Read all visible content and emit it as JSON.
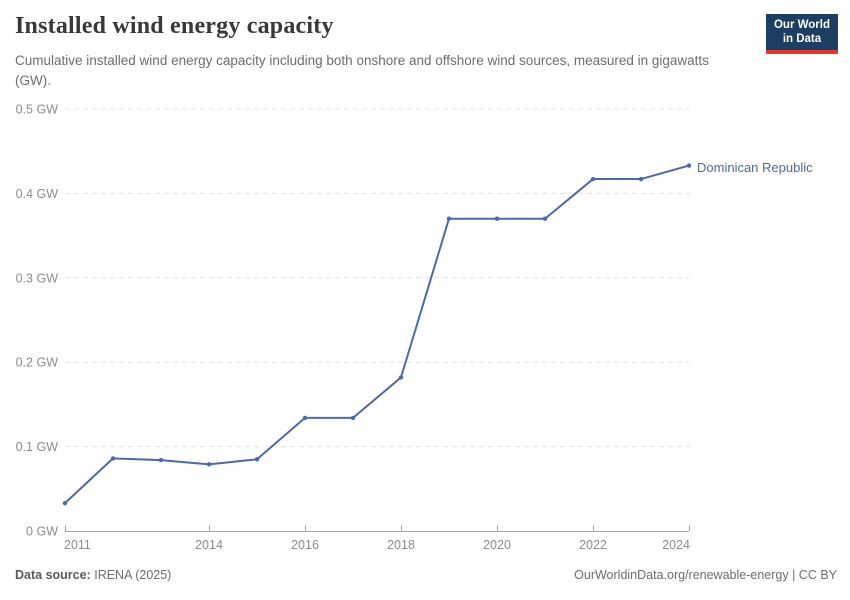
{
  "header": {
    "title": "Installed wind energy capacity",
    "subtitle": "Cumulative installed wind energy capacity including both onshore and offshore wind sources, measured in gigawatts (GW)."
  },
  "logo": {
    "line1": "Our World",
    "line2": "in Data",
    "bg_color": "#1d3d63",
    "accent_color": "#dc3a2f"
  },
  "chart_data": {
    "type": "line",
    "title": "Installed wind energy capacity",
    "xlabel": "",
    "ylabel": "",
    "x": [
      2011,
      2012,
      2013,
      2014,
      2015,
      2016,
      2017,
      2018,
      2019,
      2020,
      2021,
      2022,
      2023,
      2024
    ],
    "series": [
      {
        "name": "Dominican Republic",
        "color": "#4b6aa5",
        "values": [
          0.033,
          0.086,
          0.084,
          0.079,
          0.085,
          0.134,
          0.134,
          0.182,
          0.37,
          0.37,
          0.37,
          0.417,
          0.417,
          0.433
        ]
      }
    ],
    "unit": "GW",
    "ylim": [
      0,
      0.5
    ],
    "xlim": [
      2011,
      2024
    ],
    "y_ticks": [
      {
        "v": 0,
        "label": "0 GW"
      },
      {
        "v": 0.1,
        "label": "0.1 GW"
      },
      {
        "v": 0.2,
        "label": "0.2 GW"
      },
      {
        "v": 0.3,
        "label": "0.3 GW"
      },
      {
        "v": 0.4,
        "label": "0.4 GW"
      },
      {
        "v": 0.5,
        "label": "0.5 GW"
      }
    ],
    "x_ticks": [
      {
        "v": 2011,
        "label": "2011"
      },
      {
        "v": 2014,
        "label": "2014"
      },
      {
        "v": 2016,
        "label": "2016"
      },
      {
        "v": 2018,
        "label": "2018"
      },
      {
        "v": 2020,
        "label": "2020"
      },
      {
        "v": 2022,
        "label": "2022"
      },
      {
        "v": 2024,
        "label": "2024"
      }
    ],
    "grid": "horizontal-dashed",
    "legend": "end-of-line-label",
    "colors": {
      "gridline": "#e0e0e0",
      "axis": "#a6a6a6",
      "tick_label": "#8c8c8c"
    }
  },
  "footer": {
    "source_label": "Data source:",
    "source_value": "IRENA (2025)",
    "credit": "OurWorldinData.org/renewable-energy | CC BY"
  }
}
